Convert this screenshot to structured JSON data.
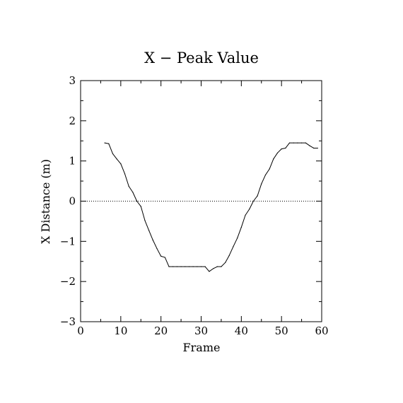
{
  "chart_data": {
    "type": "line",
    "title": "X − Peak Value",
    "xlabel": "Frame",
    "ylabel": "X Distance (m)",
    "xlim": [
      0,
      60
    ],
    "ylim": [
      -3,
      3
    ],
    "x_ticks": [
      0,
      10,
      20,
      30,
      40,
      50,
      60
    ],
    "y_ticks": [
      3,
      2,
      1,
      0,
      -1,
      -2,
      -3
    ],
    "x_tick_labels": [
      "0",
      "10",
      "20",
      "30",
      "40",
      "50",
      "60"
    ],
    "y_tick_labels": [
      "3",
      "2",
      "1",
      "0",
      "−1",
      "−2",
      "−3"
    ],
    "grid": false,
    "reference_line": {
      "y": 0,
      "style": "dotted"
    },
    "series": [
      {
        "x": [
          6,
          7,
          8,
          9,
          10,
          11,
          12,
          13,
          14,
          15,
          16,
          17,
          18,
          19,
          20,
          21,
          22,
          23,
          24,
          25,
          26,
          27,
          28,
          29,
          30,
          31,
          32,
          33,
          34,
          35,
          36,
          37,
          38,
          39,
          40,
          41,
          42,
          43,
          44,
          45,
          46,
          47,
          48,
          49,
          50,
          51,
          52,
          53,
          54,
          55,
          56,
          57,
          58,
          59
        ],
        "y": [
          1.45,
          1.43,
          1.18,
          1.05,
          0.93,
          0.68,
          0.37,
          0.22,
          0.0,
          -0.13,
          -0.48,
          -0.73,
          -0.97,
          -1.18,
          -1.37,
          -1.4,
          -1.63,
          -1.63,
          -1.63,
          -1.63,
          -1.63,
          -1.63,
          -1.63,
          -1.63,
          -1.63,
          -1.63,
          -1.75,
          -1.68,
          -1.63,
          -1.63,
          -1.53,
          -1.35,
          -1.13,
          -0.92,
          -0.65,
          -0.35,
          -0.2,
          0.0,
          0.13,
          0.43,
          0.65,
          0.8,
          1.05,
          1.2,
          1.3,
          1.32,
          1.45,
          1.45,
          1.45,
          1.45,
          1.45,
          1.38,
          1.32,
          1.32
        ]
      }
    ]
  }
}
